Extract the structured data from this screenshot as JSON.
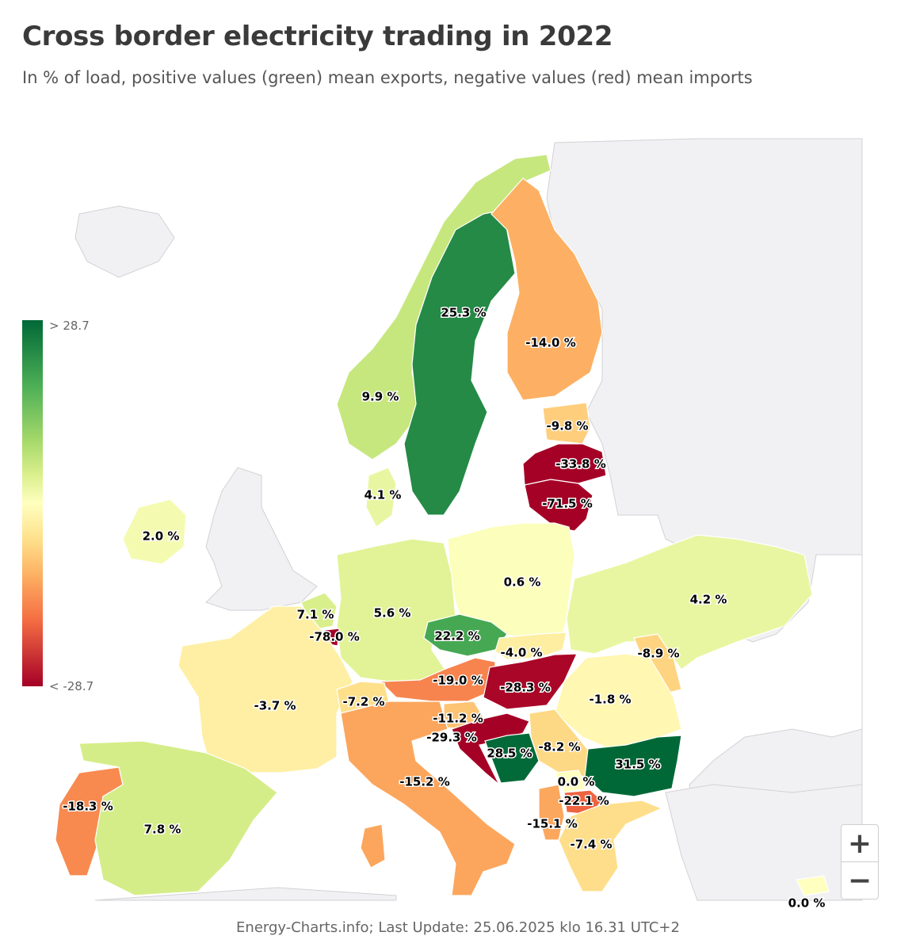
{
  "header": {
    "title": "Cross border electricity trading in 2022",
    "subtitle": "In % of load, positive values (green) mean exports, negative values (red) mean imports"
  },
  "legend": {
    "max_label": "> 28.7",
    "min_label": "< -28.7",
    "max_value": 28.7,
    "min_value": -28.7
  },
  "colors": {
    "scale": [
      "#a50026",
      "#f46d43",
      "#fdae61",
      "#fee08b",
      "#ffffbf",
      "#d9ef8b",
      "#a6d96a",
      "#4daf56",
      "#006837"
    ],
    "land_background": "#f1f1f3"
  },
  "regions": [
    {
      "id": "norway",
      "label": "9.9 %",
      "value": 9.9
    },
    {
      "id": "sweden",
      "label": "25.3 %",
      "value": 25.3
    },
    {
      "id": "finland",
      "label": "-14.0 %",
      "value": -14.0
    },
    {
      "id": "estonia",
      "label": "-9.8 %",
      "value": -9.8
    },
    {
      "id": "latvia",
      "label": "-33.8 %",
      "value": -33.8
    },
    {
      "id": "lithuania",
      "label": "-71.5 %",
      "value": -71.5
    },
    {
      "id": "denmark",
      "label": "4.1 %",
      "value": 4.1
    },
    {
      "id": "ireland",
      "label": "2.0 %",
      "value": 2.0
    },
    {
      "id": "poland",
      "label": "0.6 %",
      "value": 0.6
    },
    {
      "id": "ukraine",
      "label": "4.2 %",
      "value": 4.2
    },
    {
      "id": "netherlands",
      "label": "7.1 %",
      "value": 7.1
    },
    {
      "id": "germany",
      "label": "5.6 %",
      "value": 5.6
    },
    {
      "id": "luxembourg",
      "label": "-78.0 %",
      "value": -78.0
    },
    {
      "id": "czechia",
      "label": "22.2 %",
      "value": 22.2
    },
    {
      "id": "slovakia",
      "label": "-4.0 %",
      "value": -4.0
    },
    {
      "id": "moldova",
      "label": "-8.9 %",
      "value": -8.9
    },
    {
      "id": "austria",
      "label": "-19.0 %",
      "value": -19.0
    },
    {
      "id": "hungary",
      "label": "-28.3 %",
      "value": -28.3
    },
    {
      "id": "romania",
      "label": "-1.8 %",
      "value": -1.8
    },
    {
      "id": "france",
      "label": "-3.7 %",
      "value": -3.7
    },
    {
      "id": "switzerland",
      "label": "-7.2 %",
      "value": -7.2
    },
    {
      "id": "slovenia",
      "label": "-11.2 %",
      "value": -11.2
    },
    {
      "id": "croatia",
      "label": "-29.3 %",
      "value": -29.3
    },
    {
      "id": "bosnia",
      "label": "28.5 %",
      "value": 28.5
    },
    {
      "id": "serbia",
      "label": "-8.2 %",
      "value": -8.2
    },
    {
      "id": "bulgaria",
      "label": "31.5 %",
      "value": 31.5
    },
    {
      "id": "italy",
      "label": "-15.2 %",
      "value": -15.2
    },
    {
      "id": "kosovo",
      "label": "0.0 %",
      "value": 0.0
    },
    {
      "id": "north-macedonia",
      "label": "-22.1 %",
      "value": -22.1
    },
    {
      "id": "albania",
      "label": "-15.1 %",
      "value": -15.1
    },
    {
      "id": "greece",
      "label": "-7.4 %",
      "value": -7.4
    },
    {
      "id": "portugal",
      "label": "-18.3 %",
      "value": -18.3
    },
    {
      "id": "spain",
      "label": "7.8 %",
      "value": 7.8
    },
    {
      "id": "cyprus",
      "label": "0.0 %",
      "value": 0.0
    }
  ],
  "controls": {
    "zoom_in": "+",
    "zoom_out": "−"
  },
  "footer": {
    "source": "Energy-Charts.info; Last Update: 25.06.2025 klo 16.31 UTC+2"
  }
}
